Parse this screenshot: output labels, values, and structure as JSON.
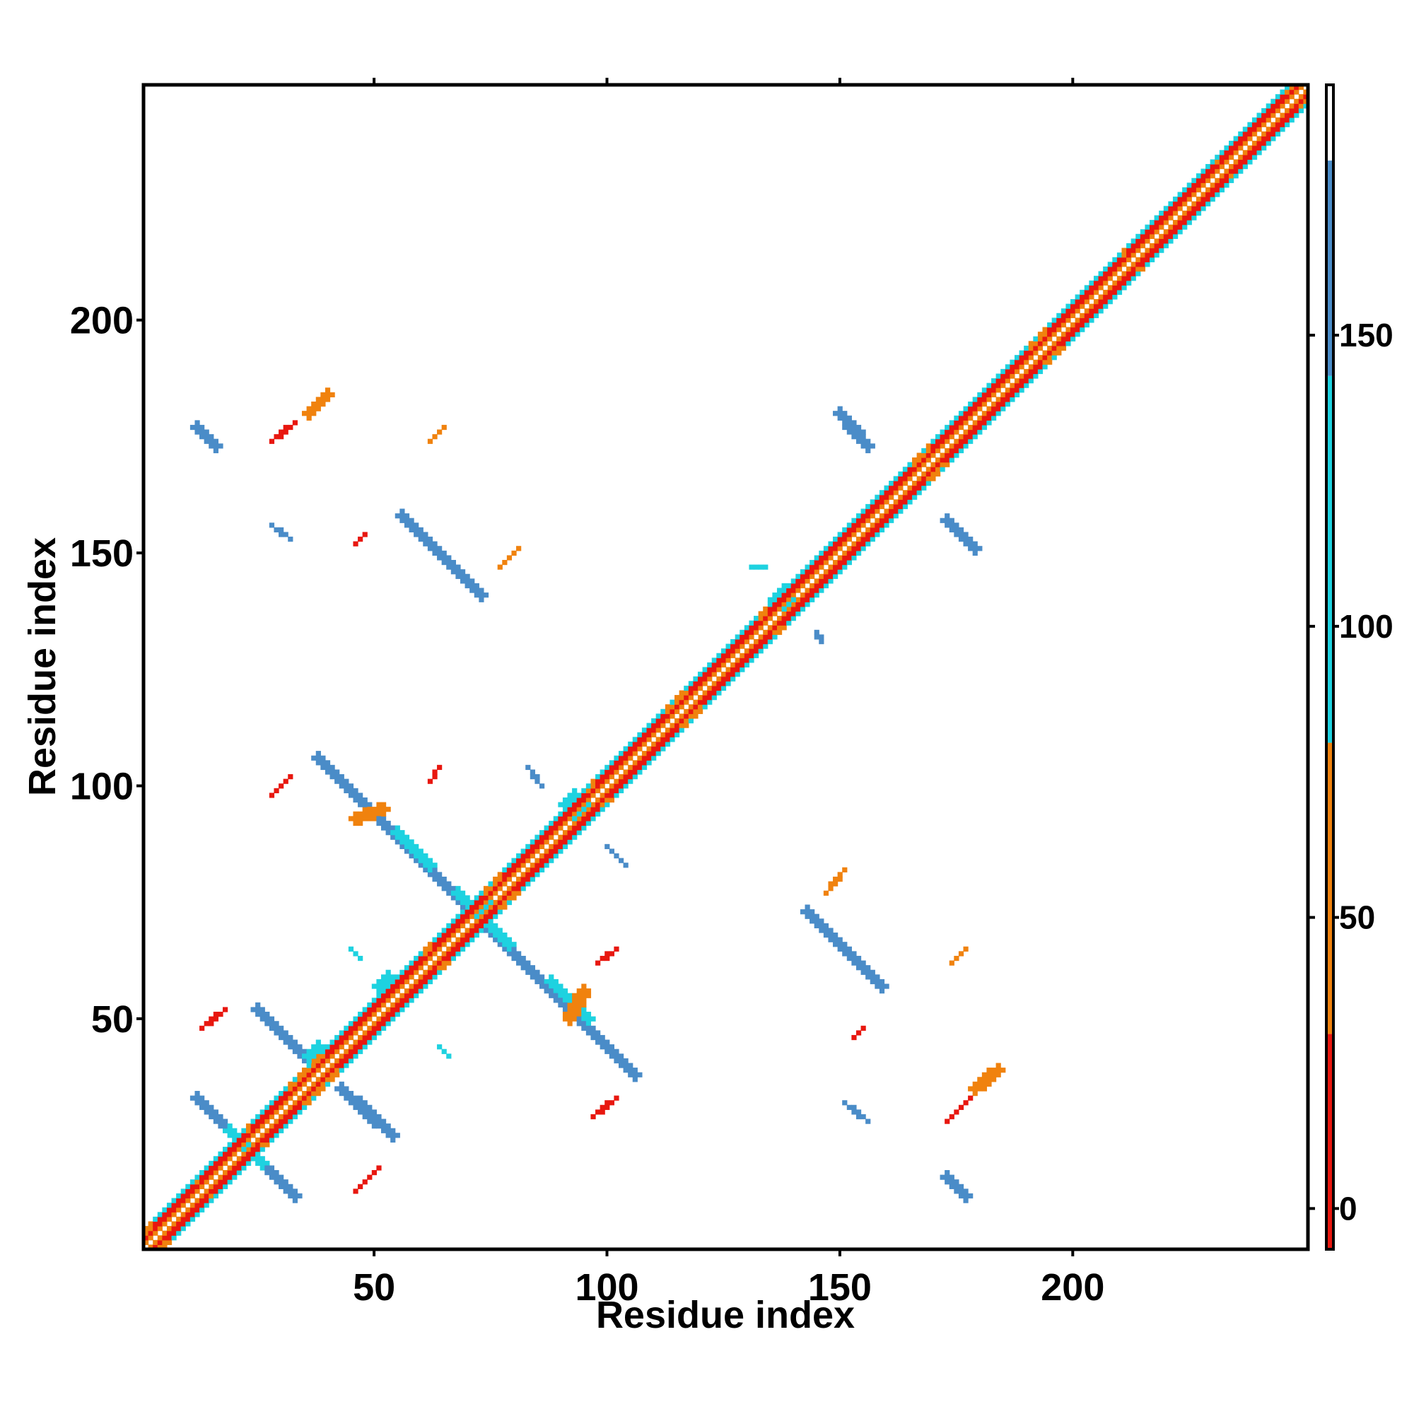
{
  "chart_data": {
    "type": "heatmap",
    "title": "",
    "xlabel": "Residue index",
    "ylabel": "Residue index",
    "xlim": [
      1,
      250
    ],
    "ylim": [
      1,
      250
    ],
    "x_ticks": [
      50,
      100,
      150,
      200
    ],
    "y_ticks": [
      50,
      100,
      150,
      200
    ],
    "x_tick_labels": [
      "50",
      "100",
      "150",
      "200"
    ],
    "y_tick_labels": [
      "50",
      "100",
      "150",
      "200"
    ],
    "grid": false,
    "legend": "none",
    "colorbar": {
      "placement": "right",
      "range": [
        -7,
        193
      ],
      "ticks": [
        0,
        50,
        100,
        150
      ],
      "tick_labels": [
        "0",
        "50",
        "100",
        "150"
      ],
      "bands": [
        {
          "from": -7,
          "to": 30,
          "color": "#e8170f"
        },
        {
          "from": 30,
          "to": 80,
          "color": "#f0820e"
        },
        {
          "from": 80,
          "to": 143,
          "color": "#1ed2e0"
        },
        {
          "from": 143,
          "to": 180,
          "color": "#4a8cc8"
        },
        {
          "from": 180,
          "to": 193,
          "color": "#ffffff"
        }
      ]
    },
    "palette": {
      "red": "#e8170f",
      "orange": "#f0820e",
      "light_orange": "#f7b04a",
      "cyan": "#1ed2e0",
      "steel_blue": "#4a8cc8"
    },
    "diagonal": {
      "from": 1,
      "to": 250,
      "bands": [
        {
          "offset": 1,
          "color": "orange"
        },
        {
          "offset": 2,
          "color": "red"
        },
        {
          "offset": 3,
          "color": "red"
        },
        {
          "offset": 4,
          "color": "cyan"
        }
      ],
      "helix_segments": [
        [
          3,
          11
        ],
        [
          13,
          22
        ],
        [
          24,
          31
        ],
        [
          40,
          48
        ],
        [
          48,
          60
        ],
        [
          63,
          73
        ],
        [
          78,
          95
        ],
        [
          98,
          112
        ],
        [
          118,
          132
        ],
        [
          135,
          150
        ],
        [
          150,
          165
        ],
        [
          170,
          190
        ],
        [
          195,
          210
        ],
        [
          212,
          230
        ],
        [
          232,
          245
        ]
      ]
    },
    "features": [
      {
        "type": "line",
        "p1": [
          12,
          33
        ],
        "p2": [
          33,
          12
        ],
        "width": 2.2,
        "color": "steel_blue"
      },
      {
        "type": "line",
        "p1": [
          19,
          26
        ],
        "p2": [
          26,
          19
        ],
        "width": 2.6,
        "color": "cyan"
      },
      {
        "type": "line",
        "p1": [
          25,
          52
        ],
        "p2": [
          36,
          41
        ],
        "width": 2.2,
        "color": "steel_blue"
      },
      {
        "type": "line",
        "p1": [
          43,
          35
        ],
        "p2": [
          54,
          25
        ],
        "width": 2.2,
        "color": "steel_blue"
      },
      {
        "type": "line",
        "p1": [
          38,
          106
        ],
        "p2": [
          106,
          38
        ],
        "width": 2.2,
        "color": "steel_blue"
      },
      {
        "type": "line",
        "p1": [
          55,
          90
        ],
        "p2": [
          62,
          83
        ],
        "width": 2.6,
        "color": "cyan"
      },
      {
        "type": "line",
        "p1": [
          68,
          77
        ],
        "p2": [
          79,
          66
        ],
        "width": 2.6,
        "color": "cyan"
      },
      {
        "type": "line",
        "p1": [
          88,
          58
        ],
        "p2": [
          96,
          50
        ],
        "width": 2.6,
        "color": "cyan"
      },
      {
        "type": "line",
        "p1": [
          56,
          158
        ],
        "p2": [
          73,
          141
        ],
        "width": 2.2,
        "color": "steel_blue"
      },
      {
        "type": "line",
        "p1": [
          143,
          73
        ],
        "p2": [
          159,
          57
        ],
        "width": 2.2,
        "color": "steel_blue"
      },
      {
        "type": "line",
        "p1": [
          150,
          180
        ],
        "p2": [
          156,
          173
        ],
        "width": 2.2,
        "color": "steel_blue"
      },
      {
        "type": "line",
        "p1": [
          173,
          157
        ],
        "p2": [
          179,
          151
        ],
        "width": 2.2,
        "color": "steel_blue"
      },
      {
        "type": "line",
        "p1": [
          12,
          177
        ],
        "p2": [
          16,
          173
        ],
        "width": 2.0,
        "color": "steel_blue"
      },
      {
        "type": "line",
        "p1": [
          173,
          16
        ],
        "p2": [
          177,
          12
        ],
        "width": 2.0,
        "color": "steel_blue"
      },
      {
        "type": "line",
        "p1": [
          36,
          180
        ],
        "p2": [
          40,
          184
        ],
        "width": 2.0,
        "color": "orange"
      },
      {
        "type": "line",
        "p1": [
          28,
          174
        ],
        "p2": [
          33,
          178
        ],
        "width": 1.0,
        "color": "red"
      },
      {
        "type": "line",
        "p1": [
          179,
          35
        ],
        "p2": [
          184,
          39
        ],
        "width": 2.0,
        "color": "orange"
      },
      {
        "type": "line",
        "p1": [
          173,
          28
        ],
        "p2": [
          178,
          33
        ],
        "width": 1.0,
        "color": "red"
      },
      {
        "type": "line",
        "p1": [
          13,
          48
        ],
        "p2": [
          18,
          52
        ],
        "width": 1.0,
        "color": "red"
      },
      {
        "type": "line",
        "p1": [
          46,
          13
        ],
        "p2": [
          51,
          18
        ],
        "width": 1.0,
        "color": "red"
      },
      {
        "type": "line",
        "p1": [
          28,
          98
        ],
        "p2": [
          32,
          102
        ],
        "width": 1.0,
        "color": "red"
      },
      {
        "type": "line",
        "p1": [
          97,
          29
        ],
        "p2": [
          102,
          33
        ],
        "width": 1.0,
        "color": "red"
      },
      {
        "type": "line",
        "p1": [
          62,
          174
        ],
        "p2": [
          65,
          177
        ],
        "width": 1.0,
        "color": "orange"
      },
      {
        "type": "line",
        "p1": [
          77,
          147
        ],
        "p2": [
          81,
          151
        ],
        "width": 1.0,
        "color": "orange"
      },
      {
        "type": "line",
        "p1": [
          46,
          152
        ],
        "p2": [
          48,
          154
        ],
        "width": 1.0,
        "color": "red"
      },
      {
        "type": "line",
        "p1": [
          62,
          101
        ],
        "p2": [
          64,
          104
        ],
        "width": 1.0,
        "color": "red"
      },
      {
        "type": "line",
        "p1": [
          98,
          62
        ],
        "p2": [
          102,
          65
        ],
        "width": 1.0,
        "color": "red"
      },
      {
        "type": "line",
        "p1": [
          147,
          77
        ],
        "p2": [
          151,
          82
        ],
        "width": 1.0,
        "color": "orange"
      },
      {
        "type": "line",
        "p1": [
          174,
          62
        ],
        "p2": [
          177,
          65
        ],
        "width": 1.0,
        "color": "orange"
      },
      {
        "type": "line",
        "p1": [
          153,
          46
        ],
        "p2": [
          155,
          48
        ],
        "width": 1.0,
        "color": "red"
      },
      {
        "type": "line",
        "p1": [
          28,
          156
        ],
        "p2": [
          32,
          153
        ],
        "width": 1.0,
        "color": "steel_blue"
      },
      {
        "type": "line",
        "p1": [
          83,
          104
        ],
        "p2": [
          86,
          100
        ],
        "width": 1.0,
        "color": "steel_blue"
      },
      {
        "type": "line",
        "p1": [
          100,
          87
        ],
        "p2": [
          104,
          83
        ],
        "width": 1.0,
        "color": "steel_blue"
      },
      {
        "type": "line",
        "p1": [
          151,
          32
        ],
        "p2": [
          156,
          28
        ],
        "width": 1.0,
        "color": "steel_blue"
      },
      {
        "type": "line",
        "p1": [
          64,
          44
        ],
        "p2": [
          66,
          42
        ],
        "width": 1.0,
        "color": "cyan"
      },
      {
        "type": "line",
        "p1": [
          45,
          65
        ],
        "p2": [
          47,
          63
        ],
        "width": 1.0,
        "color": "cyan"
      },
      {
        "type": "line",
        "p1": [
          145,
          133
        ],
        "p2": [
          146,
          131
        ],
        "width": 1.0,
        "color": "steel_blue"
      },
      {
        "type": "line",
        "p1": [
          131,
          147
        ],
        "p2": [
          134,
          147
        ],
        "width": 1.0,
        "color": "cyan"
      },
      {
        "type": "line",
        "p1": [
          46,
          93
        ],
        "p2": [
          52,
          95
        ],
        "width": 2.4,
        "color": "orange"
      },
      {
        "type": "line",
        "p1": [
          92,
          50
        ],
        "p2": [
          95,
          56
        ],
        "width": 2.4,
        "color": "orange"
      }
    ],
    "blobs": [
      {
        "center": [
          38,
          42
        ],
        "radius": 3.2,
        "color": "cyan"
      },
      {
        "center": [
          53,
          57
        ],
        "radius": 3.2,
        "color": "cyan"
      },
      {
        "center": [
          93,
          96
        ],
        "radius": 3.2,
        "color": "cyan"
      },
      {
        "center": [
          138,
          140
        ],
        "radius": 3.2,
        "color": "cyan"
      },
      {
        "center": [
          74,
          74
        ],
        "radius": 3.0,
        "color": "cyan"
      }
    ]
  }
}
